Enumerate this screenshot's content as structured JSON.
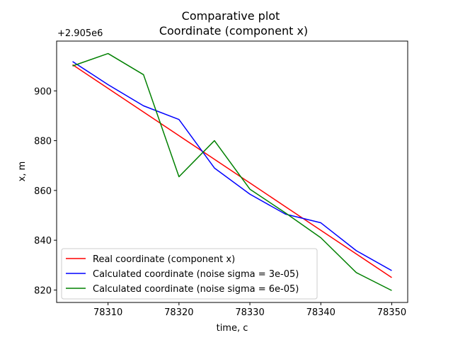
{
  "chart_data": {
    "type": "line",
    "title": "Comparative plot",
    "subtitle": "Coordinate (component x)",
    "xlabel": "time, c",
    "ylabel": "x, m",
    "y_offset_label": "+2.905e6",
    "xlim": [
      78302.75,
      78352.25
    ],
    "ylim": [
      815,
      920
    ],
    "x_ticks": [
      78310,
      78320,
      78330,
      78340,
      78350
    ],
    "x_tick_labels": [
      "78310",
      "78320",
      "78330",
      "78340",
      "78350"
    ],
    "y_ticks": [
      820,
      840,
      860,
      880,
      900
    ],
    "y_tick_labels": [
      "820",
      "840",
      "860",
      "880",
      "900"
    ],
    "grid": false,
    "legend_position": "lower-left",
    "x": [
      78305,
      78310,
      78315,
      78320,
      78325,
      78330,
      78335,
      78340,
      78345,
      78350
    ],
    "series": [
      {
        "name": "Real coordinate (component x)",
        "color": "#ff0000",
        "values": [
          910.5,
          901.0,
          891.5,
          882.0,
          872.5,
          863.0,
          853.5,
          844.0,
          834.5,
          825.0
        ]
      },
      {
        "name": "Calculated coordinate (noise sigma = 3e-05)",
        "color": "#0000ff",
        "values": [
          911.8,
          902.5,
          894.0,
          888.5,
          869.0,
          858.5,
          850.5,
          847.0,
          835.8,
          827.8
        ]
      },
      {
        "name": "Calculated coordinate (noise sigma = 6e-05)",
        "color": "#008000",
        "values": [
          910.0,
          915.0,
          906.5,
          865.5,
          880.0,
          860.5,
          851.0,
          841.0,
          827.0,
          819.8
        ]
      }
    ]
  }
}
